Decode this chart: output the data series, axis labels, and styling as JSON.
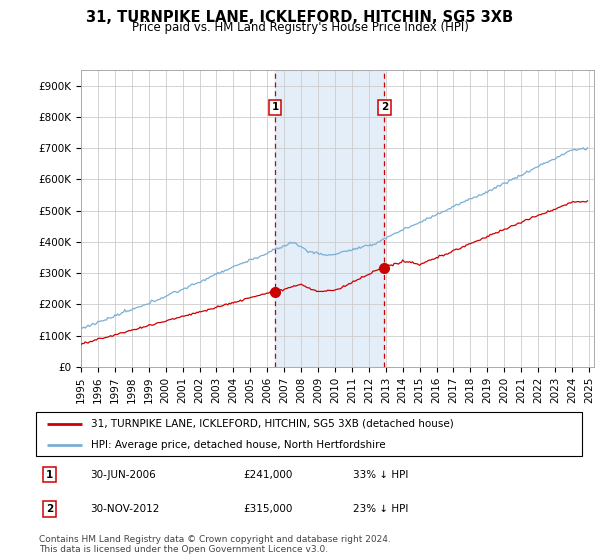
{
  "title": "31, TURNPIKE LANE, ICKLEFORD, HITCHIN, SG5 3XB",
  "subtitle": "Price paid vs. HM Land Registry's House Price Index (HPI)",
  "ylim": [
    0,
    950000
  ],
  "yticks": [
    0,
    100000,
    200000,
    300000,
    400000,
    500000,
    600000,
    700000,
    800000,
    900000
  ],
  "ytick_labels": [
    "£0",
    "£100K",
    "£200K",
    "£300K",
    "£400K",
    "£500K",
    "£600K",
    "£700K",
    "£800K",
    "£900K"
  ],
  "grid_color": "#cccccc",
  "shade_color": "#cce0f5",
  "sale1_price": 241000,
  "sale2_price": 315000,
  "sale1_label": "1",
  "sale2_label": "2",
  "sale1_date_str": "30-JUN-2006",
  "sale2_date_str": "30-NOV-2012",
  "sale1_pct": "33% ↓ HPI",
  "sale2_pct": "23% ↓ HPI",
  "legend_label_red": "31, TURNPIKE LANE, ICKLEFORD, HITCHIN, SG5 3XB (detached house)",
  "legend_label_blue": "HPI: Average price, detached house, North Hertfordshire",
  "footnote": "Contains HM Land Registry data © Crown copyright and database right 2024.\nThis data is licensed under the Open Government Licence v3.0.",
  "red_color": "#cc0000",
  "blue_color": "#7aafd4",
  "title_fontsize": 10.5,
  "subtitle_fontsize": 8.5,
  "tick_fontsize": 7.5,
  "legend_fontsize": 7.5,
  "footnote_fontsize": 6.5,
  "sale1_x": 2006.458,
  "sale2_x": 2012.917
}
